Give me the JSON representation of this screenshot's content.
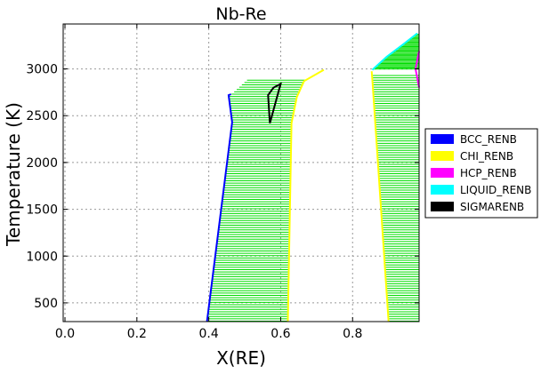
{
  "chart_data": {
    "type": "phase-diagram",
    "title": "Nb-Re",
    "xlabel": "X(RE)",
    "ylabel": "Temperature (K)",
    "xlim": [
      -0.005,
      0.985
    ],
    "ylim": [
      300,
      3480
    ],
    "xticks": [
      0.0,
      0.2,
      0.4,
      0.6,
      0.8
    ],
    "xtick_labels": [
      "0.0",
      "0.2",
      "0.4",
      "0.6",
      "0.8"
    ],
    "yticks": [
      500,
      1000,
      1500,
      2000,
      2500,
      3000
    ],
    "ytick_labels": [
      "500",
      "1000",
      "1500",
      "2000",
      "2500",
      "3000"
    ],
    "grid": true,
    "legend_position": "right-outside",
    "legend": [
      {
        "name": "BCC_RENB",
        "color": "#0000ff"
      },
      {
        "name": "CHI_RENB",
        "color": "#ffff00"
      },
      {
        "name": "HCP_RENB",
        "color": "#ff00ff"
      },
      {
        "name": "LIQUID_RENB",
        "color": "#00ffff"
      },
      {
        "name": "SIGMARENB",
        "color": "#000000"
      }
    ],
    "tie_line_color": "#00dd00",
    "regions": [
      {
        "name": "BCC+CHI",
        "ymin": 300,
        "ymax": 2900,
        "step": 25
      },
      {
        "name": "CHI+HCP",
        "ymin": 300,
        "ymax": 2950,
        "step": 25
      },
      {
        "name": "LIQUID+HCP",
        "ymin": 2950,
        "ymax": 3400,
        "step": 12
      }
    ],
    "series": [
      {
        "phase": "BCC_RENB",
        "color": "#0000ff",
        "points": [
          [
            0.395,
            300
          ],
          [
            0.465,
            2430
          ],
          [
            0.455,
            2720
          ],
          [
            0.462,
            2730
          ]
        ]
      },
      {
        "phase": "CHI_RENB",
        "color": "#ffff00",
        "points": [
          [
            0.62,
            300
          ],
          [
            0.63,
            2420
          ],
          [
            0.645,
            2700
          ],
          [
            0.665,
            2870
          ],
          [
            0.72,
            2990
          ]
        ]
      },
      {
        "phase": "CHI_RENB",
        "color": "#ffff00",
        "points": [
          [
            0.9,
            300
          ],
          [
            0.855,
            2880
          ],
          [
            0.853,
            2975
          ]
        ]
      },
      {
        "phase": "LIQUID_RENB",
        "color": "#00ffff",
        "points": [
          [
            0.855,
            2990
          ],
          [
            0.895,
            3130
          ],
          [
            0.94,
            3260
          ],
          [
            0.98,
            3380
          ]
        ]
      },
      {
        "phase": "HCP_RENB",
        "color": "#ff00ff",
        "points": [
          [
            0.985,
            3190
          ],
          [
            0.975,
            3000
          ],
          [
            0.985,
            2800
          ]
        ]
      },
      {
        "phase": "SIGMARENB",
        "color": "#000000",
        "points": [
          [
            0.57,
            2420
          ],
          [
            0.6,
            2840
          ],
          [
            0.58,
            2800
          ],
          [
            0.565,
            2720
          ],
          [
            0.57,
            2420
          ]
        ]
      }
    ]
  }
}
